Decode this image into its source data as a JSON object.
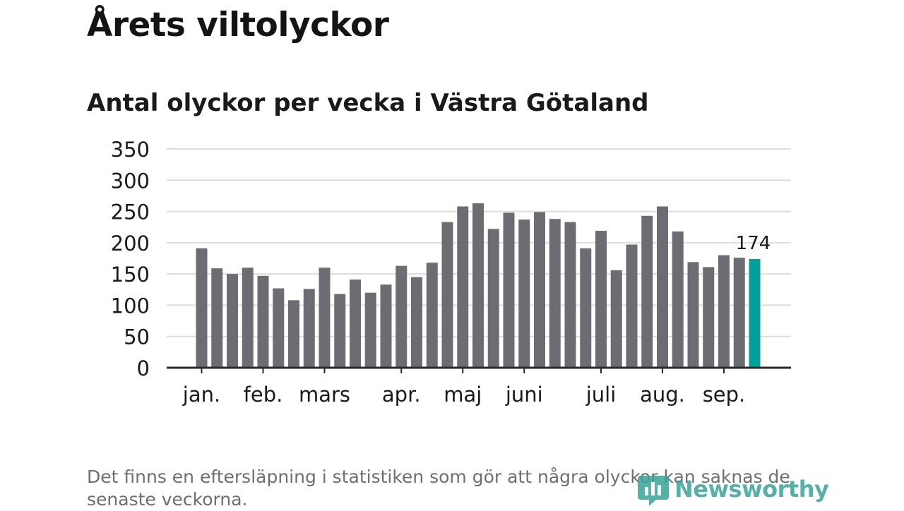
{
  "title": "Årets viltolyckor",
  "subtitle": "Antal olyckor per vecka i Västra Götaland",
  "footnote": "Det finns en eftersläpning i statistiken som gör att några olyckor kan saknas de senaste veckorna.",
  "logo": {
    "text": "Newsworthy",
    "icon": "bar-chart-logo-icon"
  },
  "colors": {
    "bar": "#6d6c73",
    "highlight": "#00a19a",
    "grid": "#dcdcdc",
    "axis": "#2a2a2a",
    "text": "#1a1a1a"
  },
  "chart_data": {
    "type": "bar",
    "title": "Antal olyckor per vecka i Västra Götaland",
    "ylim": [
      0,
      350
    ],
    "yticks": [
      0,
      50,
      100,
      150,
      200,
      250,
      300,
      350
    ],
    "grid": true,
    "values": [
      191,
      159,
      150,
      160,
      147,
      127,
      108,
      126,
      160,
      118,
      141,
      120,
      133,
      163,
      145,
      168,
      233,
      258,
      263,
      222,
      248,
      237,
      249,
      238,
      233,
      191,
      219,
      156,
      197,
      243,
      258,
      218,
      169,
      161,
      180,
      176,
      174
    ],
    "highlight_index": 36,
    "highlight_label": "174",
    "month_labels": [
      {
        "label": "jan.",
        "bar_index": 0
      },
      {
        "label": "feb.",
        "bar_index": 4
      },
      {
        "label": "mars",
        "bar_index": 8
      },
      {
        "label": "apr.",
        "bar_index": 13
      },
      {
        "label": "maj",
        "bar_index": 17
      },
      {
        "label": "juni",
        "bar_index": 21
      },
      {
        "label": "juli",
        "bar_index": 26
      },
      {
        "label": "aug.",
        "bar_index": 30
      },
      {
        "label": "sep.",
        "bar_index": 34
      }
    ]
  }
}
